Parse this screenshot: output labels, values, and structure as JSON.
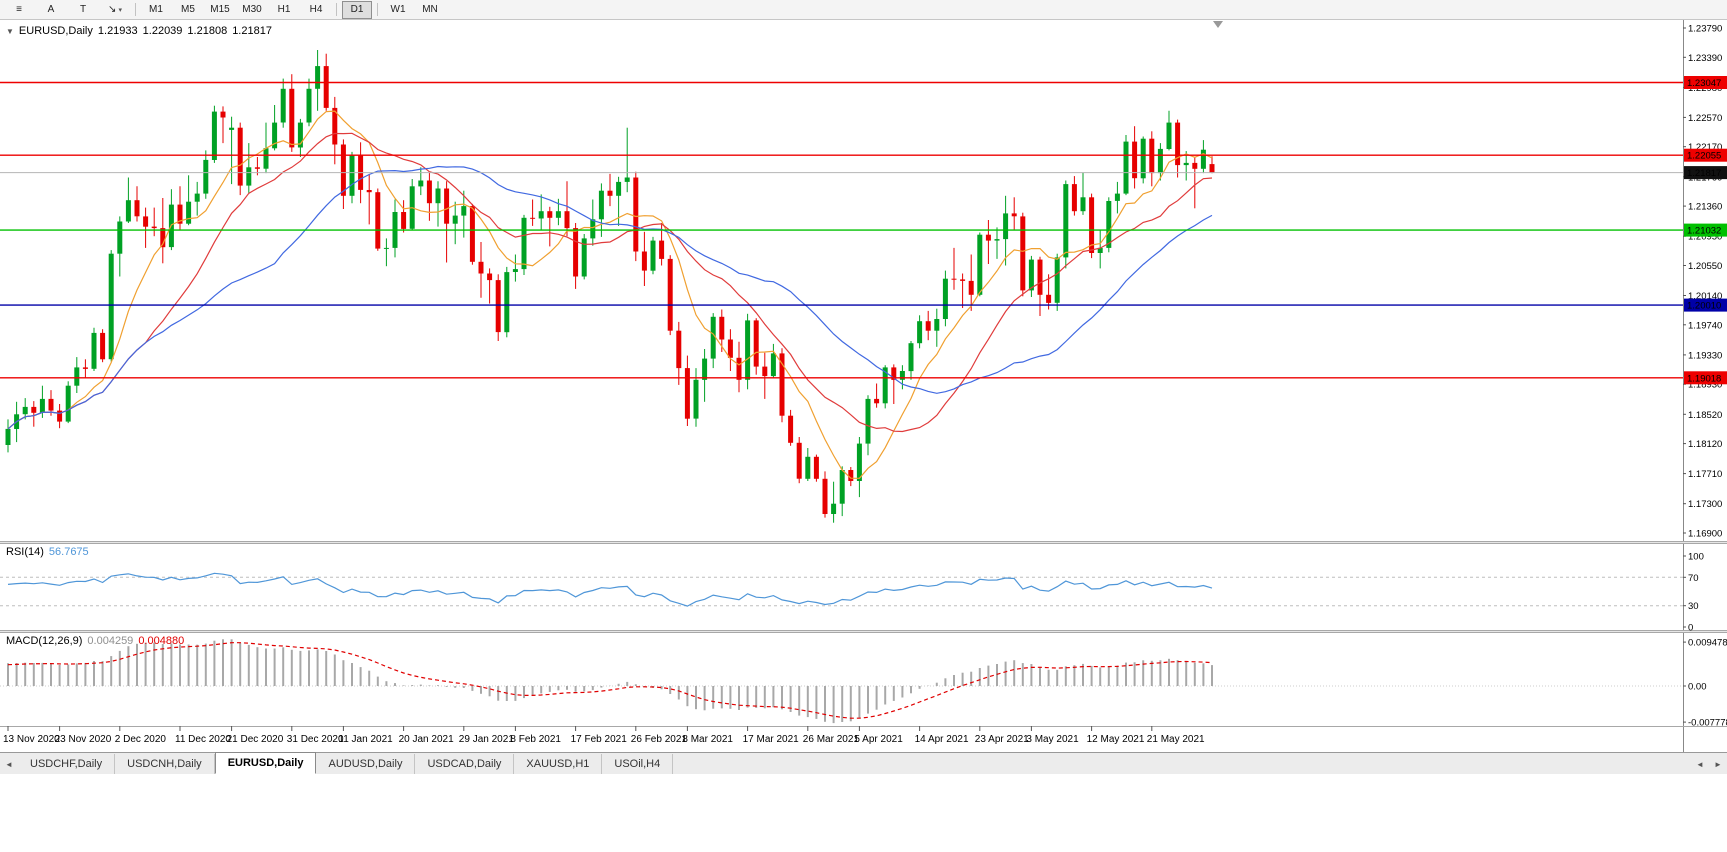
{
  "toolbar": {
    "left_buttons": [
      {
        "name": "chart-menu-button",
        "glyph": "≡"
      },
      {
        "name": "button-a",
        "glyph": "A"
      },
      {
        "name": "button-t",
        "glyph": "T"
      },
      {
        "name": "drawing-tool-button",
        "glyph": "↘",
        "dropdown": true
      }
    ],
    "timeframes": [
      "M1",
      "M5",
      "M15",
      "M30",
      "H1",
      "H4",
      "D1",
      "W1",
      "MN"
    ],
    "active_timeframe": "D1"
  },
  "icons": {
    "collapse": "▼",
    "dropdown": "▾",
    "scroll_left": "◄",
    "scroll_right": "►"
  },
  "chart": {
    "title": {
      "symbol": "EURUSD,Daily",
      "open": "1.21933",
      "high": "1.22039",
      "low": "1.21808",
      "close": "1.21817"
    }
  },
  "indicators": {
    "rsi": {
      "name": "RSI(14)",
      "value": "56.7675"
    },
    "macd": {
      "name": "MACD(12,26,9)",
      "main_value": "0.004259",
      "signal_value": "0.004880"
    }
  },
  "chart_data": {
    "type": "candlestick",
    "symbol": "EURUSD",
    "period": "Daily",
    "price_ticks": [
      "1.23790",
      "1.23390",
      "1.22980",
      "1.22570",
      "1.22170",
      "1.21760",
      "1.21360",
      "1.20950",
      "1.20550",
      "1.20140",
      "1.19740",
      "1.19330",
      "1.18930",
      "1.18520",
      "1.18120",
      "1.17710",
      "1.17300",
      "1.16900"
    ],
    "hlines": [
      {
        "price": 1.23047,
        "label": "1.23047",
        "color": "#ee0000"
      },
      {
        "price": 1.22055,
        "label": "1.22055",
        "color": "#ee0000"
      },
      {
        "price": 1.21032,
        "label": "1.21032",
        "color": "#00c000"
      },
      {
        "price": 1.2001,
        "label": "1.20010",
        "color": "#0000a8"
      },
      {
        "price": 1.19018,
        "label": "1.19018",
        "color": "#ee0000"
      }
    ],
    "current_price": {
      "price": 1.21817,
      "label": "1.21817",
      "line_color": "#b4b4b4",
      "badge_color": "#111111"
    },
    "moving_averages": [
      {
        "name": "ma-fast",
        "period": 8,
        "color": "#f0a030"
      },
      {
        "name": "ma-mid",
        "period": 17,
        "color": "#e03c3c"
      },
      {
        "name": "ma-slow",
        "period": 32,
        "color": "#4169e1"
      }
    ],
    "rsi": {
      "period": 14,
      "color": "#4f96d8",
      "levels": [
        100,
        70,
        30,
        0
      ],
      "level_lines": [
        70,
        30
      ]
    },
    "macd": {
      "fast": 12,
      "slow": 26,
      "signal": 9,
      "histogram_color": "#a8a8a8",
      "signal_color": "#e00000",
      "axis_labels": [
        "0.009478",
        "0.00",
        "-0.007778"
      ],
      "axis_values": [
        0.009478,
        0,
        -0.007778
      ]
    },
    "colors": {
      "bull": "#00a124",
      "bear": "#e60000"
    },
    "date_labels": [
      {
        "label": "13 Nov 2020",
        "i": 0
      },
      {
        "label": "23 Nov 2020",
        "i": 6
      },
      {
        "label": "2 Dec 2020",
        "i": 13
      },
      {
        "label": "11 Dec 2020",
        "i": 20
      },
      {
        "label": "21 Dec 2020",
        "i": 26
      },
      {
        "label": "31 Dec 2020",
        "i": 33
      },
      {
        "label": "11 Jan 2021",
        "i": 39
      },
      {
        "label": "20 Jan 2021",
        "i": 46
      },
      {
        "label": "29 Jan 2021",
        "i": 53
      },
      {
        "label": "8 Feb 2021",
        "i": 59
      },
      {
        "label": "17 Feb 2021",
        "i": 66
      },
      {
        "label": "26 Feb 2021",
        "i": 73
      },
      {
        "label": "8 Mar 2021",
        "i": 79
      },
      {
        "label": "17 Mar 2021",
        "i": 86
      },
      {
        "label": "26 Mar 2021",
        "i": 93
      },
      {
        "label": "5 Apr 2021",
        "i": 99
      },
      {
        "label": "14 Apr 2021",
        "i": 106
      },
      {
        "label": "23 Apr 2021",
        "i": 113
      },
      {
        "label": "3 May 2021",
        "i": 119
      },
      {
        "label": "12 May 2021",
        "i": 126
      },
      {
        "label": "21 May 2021",
        "i": 133
      }
    ],
    "ohlc": [
      [
        1.181,
        1.1845,
        1.18,
        1.1832
      ],
      [
        1.1832,
        1.1869,
        1.1814,
        1.1852
      ],
      [
        1.1852,
        1.1874,
        1.1845,
        1.1862
      ],
      [
        1.1862,
        1.187,
        1.1835,
        1.1854
      ],
      [
        1.1854,
        1.1891,
        1.1847,
        1.1873
      ],
      [
        1.1873,
        1.1885,
        1.185,
        1.1857
      ],
      [
        1.1857,
        1.1866,
        1.1833,
        1.1842
      ],
      [
        1.1842,
        1.1897,
        1.184,
        1.1891
      ],
      [
        1.1891,
        1.193,
        1.1881,
        1.1916
      ],
      [
        1.1916,
        1.1927,
        1.1902,
        1.1914
      ],
      [
        1.1914,
        1.197,
        1.1911,
        1.1963
      ],
      [
        1.1963,
        1.1968,
        1.1923,
        1.1927
      ],
      [
        1.1927,
        1.2076,
        1.1924,
        1.2071
      ],
      [
        1.2071,
        1.2122,
        1.204,
        1.2115
      ],
      [
        1.2115,
        1.2175,
        1.2113,
        1.2144
      ],
      [
        1.2144,
        1.2163,
        1.2115,
        1.2122
      ],
      [
        1.2122,
        1.2134,
        1.2079,
        1.2108
      ],
      [
        1.2108,
        1.2134,
        1.2095,
        1.2106
      ],
      [
        1.2106,
        1.2147,
        1.2058,
        1.208
      ],
      [
        1.208,
        1.2159,
        1.2076,
        1.2138
      ],
      [
        1.2138,
        1.2163,
        1.2104,
        1.2112
      ],
      [
        1.2112,
        1.2178,
        1.211,
        1.2142
      ],
      [
        1.2142,
        1.2169,
        1.2123,
        1.2153
      ],
      [
        1.2153,
        1.2212,
        1.2146,
        1.2199
      ],
      [
        1.2199,
        1.2273,
        1.2195,
        1.2265
      ],
      [
        1.2265,
        1.2272,
        1.2222,
        1.2257
      ],
      [
        1.224,
        1.2258,
        1.2166,
        1.2243
      ],
      [
        1.2243,
        1.225,
        1.2151,
        1.2164
      ],
      [
        1.2164,
        1.2222,
        1.2154,
        1.2189
      ],
      [
        1.2189,
        1.2203,
        1.2178,
        1.2187
      ],
      [
        1.2187,
        1.225,
        1.2181,
        1.2215
      ],
      [
        1.2215,
        1.2274,
        1.2212,
        1.225
      ],
      [
        1.225,
        1.231,
        1.2243,
        1.2296
      ],
      [
        1.2296,
        1.2316,
        1.221,
        1.2216
      ],
      [
        1.2216,
        1.2255,
        1.2203,
        1.225
      ],
      [
        1.225,
        1.231,
        1.2245,
        1.2296
      ],
      [
        1.2296,
        1.2349,
        1.2266,
        1.2327
      ],
      [
        1.2327,
        1.2344,
        1.2266,
        1.227
      ],
      [
        1.227,
        1.2285,
        1.2193,
        1.222
      ],
      [
        1.222,
        1.2227,
        1.2132,
        1.215
      ],
      [
        1.215,
        1.221,
        1.214,
        1.2205
      ],
      [
        1.2205,
        1.2223,
        1.214,
        1.2158
      ],
      [
        1.2158,
        1.218,
        1.2111,
        1.2155
      ],
      [
        1.2155,
        1.216,
        1.2075,
        1.2078
      ],
      [
        1.2078,
        1.2092,
        1.2054,
        1.2079
      ],
      [
        1.2079,
        1.2145,
        1.2066,
        1.2128
      ],
      [
        1.2128,
        1.2144,
        1.21,
        1.2105
      ],
      [
        1.2105,
        1.2173,
        1.2103,
        1.2163
      ],
      [
        1.2163,
        1.2189,
        1.2151,
        1.2171
      ],
      [
        1.2171,
        1.2182,
        1.2116,
        1.214
      ],
      [
        1.214,
        1.217,
        1.2108,
        1.216
      ],
      [
        1.216,
        1.217,
        1.2059,
        1.2112
      ],
      [
        1.2112,
        1.2142,
        1.2084,
        1.2123
      ],
      [
        1.2123,
        1.2157,
        1.2093,
        1.2136
      ],
      [
        1.2136,
        1.2139,
        1.2056,
        1.206
      ],
      [
        1.206,
        1.2087,
        1.2011,
        1.2044
      ],
      [
        1.2044,
        1.2051,
        1.2003,
        1.2035
      ],
      [
        1.2035,
        1.2043,
        1.1952,
        1.1964
      ],
      [
        1.1964,
        1.2053,
        1.1957,
        1.2046
      ],
      [
        1.2046,
        1.207,
        1.2033,
        1.205
      ],
      [
        1.205,
        1.2124,
        1.2042,
        1.212
      ],
      [
        1.212,
        1.2145,
        1.2109,
        1.2119
      ],
      [
        1.2119,
        1.2152,
        1.2103,
        1.2129
      ],
      [
        1.2129,
        1.2135,
        1.2081,
        1.212
      ],
      [
        1.212,
        1.2146,
        1.211,
        1.2129
      ],
      [
        1.2129,
        1.217,
        1.2095,
        1.2106
      ],
      [
        1.2106,
        1.2113,
        1.2023,
        1.204
      ],
      [
        1.204,
        1.2098,
        1.2036,
        1.2092
      ],
      [
        1.2092,
        1.2145,
        1.2082,
        1.2118
      ],
      [
        1.2118,
        1.2167,
        1.2094,
        1.2157
      ],
      [
        1.2157,
        1.218,
        1.2136,
        1.215
      ],
      [
        1.215,
        1.2176,
        1.2109,
        1.2169
      ],
      [
        1.2169,
        1.2243,
        1.2155,
        1.2175
      ],
      [
        1.2175,
        1.2183,
        1.2061,
        1.2074
      ],
      [
        1.2074,
        1.2101,
        1.2027,
        1.2048
      ],
      [
        1.2048,
        1.2094,
        1.2043,
        1.2089
      ],
      [
        1.2089,
        1.2113,
        1.2055,
        1.2064
      ],
      [
        1.2064,
        1.2069,
        1.196,
        1.1966
      ],
      [
        1.1966,
        1.1978,
        1.1892,
        1.1915
      ],
      [
        1.1915,
        1.1932,
        1.1836,
        1.1846
      ],
      [
        1.1846,
        1.1915,
        1.1835,
        1.1899
      ],
      [
        1.1899,
        1.1941,
        1.1869,
        1.1928
      ],
      [
        1.1928,
        1.199,
        1.1915,
        1.1985
      ],
      [
        1.1985,
        1.1995,
        1.1937,
        1.1954
      ],
      [
        1.1954,
        1.1968,
        1.1911,
        1.1929
      ],
      [
        1.1929,
        1.1951,
        1.1882,
        1.1899
      ],
      [
        1.1899,
        1.1989,
        1.1886,
        1.198
      ],
      [
        1.198,
        1.1983,
        1.1906,
        1.1917
      ],
      [
        1.1917,
        1.1936,
        1.1873,
        1.1904
      ],
      [
        1.1904,
        1.1948,
        1.1901,
        1.1935
      ],
      [
        1.1935,
        1.1942,
        1.1841,
        1.185
      ],
      [
        1.185,
        1.1858,
        1.1809,
        1.1813
      ],
      [
        1.1813,
        1.1821,
        1.1758,
        1.1764
      ],
      [
        1.1764,
        1.1806,
        1.1761,
        1.1794
      ],
      [
        1.1794,
        1.1797,
        1.176,
        1.1764
      ],
      [
        1.1764,
        1.1774,
        1.1711,
        1.1716
      ],
      [
        1.1716,
        1.176,
        1.1704,
        1.173
      ],
      [
        1.173,
        1.1781,
        1.1713,
        1.1776
      ],
      [
        1.1776,
        1.178,
        1.1754,
        1.1761
      ],
      [
        1.1761,
        1.1821,
        1.1739,
        1.1812
      ],
      [
        1.1812,
        1.1878,
        1.1796,
        1.1873
      ],
      [
        1.1873,
        1.1894,
        1.1861,
        1.1867
      ],
      [
        1.1867,
        1.1919,
        1.186,
        1.1916
      ],
      [
        1.1916,
        1.192,
        1.1866,
        1.1899
      ],
      [
        1.1899,
        1.1919,
        1.1886,
        1.1911
      ],
      [
        1.1911,
        1.1952,
        1.1899,
        1.1949
      ],
      [
        1.1949,
        1.1987,
        1.1942,
        1.1979
      ],
      [
        1.1979,
        1.1993,
        1.1953,
        1.1966
      ],
      [
        1.1966,
        1.1996,
        1.1944,
        1.1982
      ],
      [
        1.1982,
        1.2048,
        1.1972,
        1.2037
      ],
      [
        1.2037,
        1.2079,
        1.2022,
        1.2036
      ],
      [
        1.2036,
        1.2044,
        1.1997,
        1.2034
      ],
      [
        1.2034,
        1.207,
        1.1993,
        1.2015
      ],
      [
        1.2015,
        1.21,
        1.2013,
        1.2097
      ],
      [
        1.2097,
        1.2117,
        1.2057,
        1.2089
      ],
      [
        1.2089,
        1.2107,
        1.2064,
        1.2091
      ],
      [
        1.2091,
        1.215,
        1.2055,
        1.2126
      ],
      [
        1.2126,
        1.2148,
        1.2103,
        1.2122
      ],
      [
        1.2122,
        1.2127,
        1.2013,
        1.2021
      ],
      [
        1.2021,
        1.2068,
        1.2012,
        1.2063
      ],
      [
        1.2063,
        1.2067,
        1.1986,
        1.2015
      ],
      [
        1.2015,
        1.2043,
        1.1995,
        1.2004
      ],
      [
        1.2004,
        1.2071,
        1.1993,
        1.2066
      ],
      [
        1.2066,
        1.2171,
        1.2051,
        1.2166
      ],
      [
        1.2166,
        1.2177,
        1.2123,
        1.2129
      ],
      [
        1.2129,
        1.2182,
        1.2124,
        1.2148
      ],
      [
        1.2148,
        1.2153,
        1.2065,
        1.2072
      ],
      [
        1.2072,
        1.2103,
        1.2051,
        1.2079
      ],
      [
        1.2079,
        1.2148,
        1.2073,
        1.2143
      ],
      [
        1.2143,
        1.2169,
        1.2126,
        1.2153
      ],
      [
        1.2153,
        1.2233,
        1.2151,
        1.2224
      ],
      [
        1.2224,
        1.2245,
        1.216,
        1.2174
      ],
      [
        1.2174,
        1.2231,
        1.2167,
        1.2228
      ],
      [
        1.2228,
        1.2238,
        1.2163,
        1.2181
      ],
      [
        1.2181,
        1.2222,
        1.2171,
        1.2214
      ],
      [
        1.2214,
        1.2266,
        1.2212,
        1.225
      ],
      [
        1.225,
        1.2254,
        1.2175,
        1.2192
      ],
      [
        1.2192,
        1.2211,
        1.2171,
        1.2195
      ],
      [
        1.2195,
        1.2203,
        1.2133,
        1.2187
      ],
      [
        1.2187,
        1.2226,
        1.2181,
        1.2213
      ],
      [
        1.21933,
        1.22039,
        1.21808,
        1.21817
      ]
    ]
  },
  "tab_bar": {
    "tabs": [
      "USDCHF,Daily",
      "USDCNH,Daily",
      "EURUSD,Daily",
      "AUDUSD,Daily",
      "USDCAD,Daily",
      "XAUUSD,H1",
      "USOil,H4"
    ],
    "active": "EURUSD,Daily"
  }
}
